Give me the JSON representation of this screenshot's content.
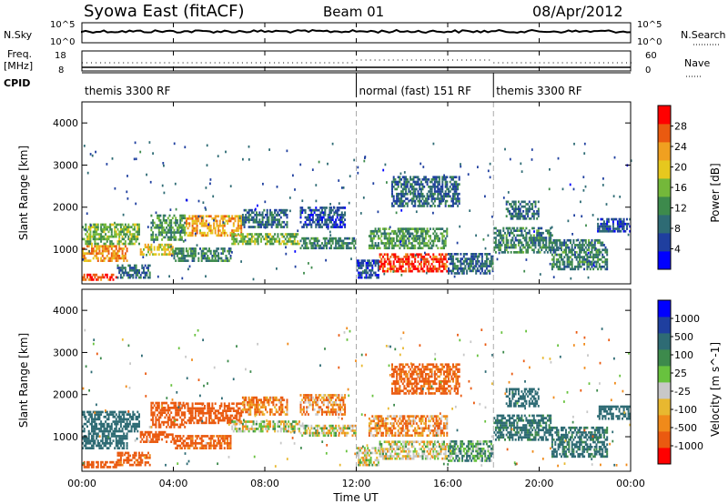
{
  "header": {
    "station": "Syowa East (fitACF)",
    "beam": "Beam 01",
    "date": "08/Apr/2012"
  },
  "top_panels": {
    "nsky_label": "N.Sky",
    "nsearch_label": "N.Search",
    "nsky_ticks": [
      "10^5",
      "10^0"
    ],
    "nsearch_ticks": [
      "10^5",
      "10^0"
    ],
    "freq_label": "Freq.",
    "freq_unit": "[MHz]",
    "freq_ticks": [
      "18",
      "8"
    ],
    "nave_label": "Nave",
    "nave_ticks": [
      "60",
      "0"
    ],
    "cpid_label": "CPID",
    "cpid_segments": [
      {
        "label": "themis 3300 RF",
        "start_hour": 0,
        "end_hour": 12
      },
      {
        "label": "normal (fast) 151 RF",
        "start_hour": 12,
        "end_hour": 18
      },
      {
        "label": "themis 3300 RF",
        "start_hour": 18,
        "end_hour": 24
      }
    ]
  },
  "axes": {
    "ylabel": "Slant Range [km]",
    "xlabel": "Time UT",
    "x_ticks": [
      "00:00",
      "04:00",
      "08:00",
      "12:00",
      "16:00",
      "20:00",
      "00:00"
    ],
    "y_ticks": [
      "1000",
      "2000",
      "3000",
      "4000"
    ]
  },
  "colors": {
    "power_scale": [
      "#0000ff",
      "#1f3f9f",
      "#2e6b74",
      "#3d8a4c",
      "#74b83a",
      "#e6c81e",
      "#f0a020",
      "#ea5a10",
      "#ff0000"
    ],
    "velocity_scale": [
      "#ff0000",
      "#ea5a10",
      "#f08a1a",
      "#e8b830",
      "#c8c8c8",
      "#68c23e",
      "#3d8a4c",
      "#2e6b74",
      "#1f3f9f",
      "#0000ff"
    ]
  },
  "chart_data": [
    {
      "type": "heatmap",
      "title": "Power",
      "xlabel": "Time UT",
      "ylabel": "Slant Range [km]",
      "xlim_hours": [
        0,
        24
      ],
      "ylim_km": [
        180,
        4500
      ],
      "colorbar_label": "Power [dB]",
      "colorbar_ticks": [
        "4",
        "8",
        "12",
        "16",
        "20",
        "24",
        "28"
      ],
      "regions": [
        {
          "t": [
            0.0,
            1.5
          ],
          "r": [
            250,
            400
          ],
          "v": 26
        },
        {
          "t": [
            0.0,
            2.0
          ],
          "r": [
            700,
            1050
          ],
          "v": 22
        },
        {
          "t": [
            0.0,
            2.5
          ],
          "r": [
            1100,
            1600
          ],
          "v": 14
        },
        {
          "t": [
            1.5,
            3.0
          ],
          "r": [
            300,
            600
          ],
          "v": 8
        },
        {
          "t": [
            2.5,
            4.0
          ],
          "r": [
            850,
            1100
          ],
          "v": 18
        },
        {
          "t": [
            3.0,
            4.5
          ],
          "r": [
            1200,
            1800
          ],
          "v": 12
        },
        {
          "t": [
            4.0,
            6.5
          ],
          "r": [
            700,
            1000
          ],
          "v": 10
        },
        {
          "t": [
            4.5,
            7.0
          ],
          "r": [
            1300,
            1800
          ],
          "v": 20
        },
        {
          "t": [
            6.5,
            9.5
          ],
          "r": [
            1100,
            1350
          ],
          "v": 14
        },
        {
          "t": [
            7.0,
            9.0
          ],
          "r": [
            1500,
            1900
          ],
          "v": 8
        },
        {
          "t": [
            9.5,
            12.0
          ],
          "r": [
            1000,
            1250
          ],
          "v": 10
        },
        {
          "t": [
            9.5,
            11.5
          ],
          "r": [
            1500,
            2000
          ],
          "v": 6
        },
        {
          "t": [
            12.0,
            13.0
          ],
          "r": [
            300,
            700
          ],
          "v": 6
        },
        {
          "t": [
            13.0,
            16.0
          ],
          "r": [
            450,
            900
          ],
          "v": 26
        },
        {
          "t": [
            12.5,
            16.0
          ],
          "r": [
            1000,
            1500
          ],
          "v": 12
        },
        {
          "t": [
            13.5,
            16.5
          ],
          "r": [
            2000,
            2700
          ],
          "v": 8
        },
        {
          "t": [
            16.0,
            18.0
          ],
          "r": [
            400,
            900
          ],
          "v": 8
        },
        {
          "t": [
            18.0,
            20.5
          ],
          "r": [
            900,
            1500
          ],
          "v": 10
        },
        {
          "t": [
            18.5,
            20.0
          ],
          "r": [
            1700,
            2100
          ],
          "v": 8
        },
        {
          "t": [
            20.5,
            23.0
          ],
          "r": [
            500,
            1200
          ],
          "v": 10
        },
        {
          "t": [
            22.5,
            24.0
          ],
          "r": [
            1400,
            1700
          ],
          "v": 6
        }
      ]
    },
    {
      "type": "heatmap",
      "title": "Velocity",
      "xlabel": "Time UT",
      "ylabel": "Slant Range [km]",
      "xlim_hours": [
        0,
        24
      ],
      "ylim_km": [
        180,
        4500
      ],
      "colorbar_label": "Velocity [m s^-1]",
      "colorbar_ticks": [
        "1000",
        "500",
        "100",
        "25",
        "-25",
        "-100",
        "-500",
        "-1000"
      ],
      "regions": [
        {
          "t": [
            0.0,
            1.5
          ],
          "r": [
            250,
            400
          ],
          "v": -200
        },
        {
          "t": [
            0.0,
            2.0
          ],
          "r": [
            700,
            1050
          ],
          "v": 200
        },
        {
          "t": [
            0.0,
            2.5
          ],
          "r": [
            1100,
            1600
          ],
          "v": 300
        },
        {
          "t": [
            1.5,
            3.0
          ],
          "r": [
            300,
            600
          ],
          "v": -150
        },
        {
          "t": [
            2.5,
            4.0
          ],
          "r": [
            850,
            1100
          ],
          "v": -200
        },
        {
          "t": [
            3.0,
            4.5
          ],
          "r": [
            1200,
            1800
          ],
          "v": -300
        },
        {
          "t": [
            4.0,
            6.5
          ],
          "r": [
            700,
            1000
          ],
          "v": -150
        },
        {
          "t": [
            4.5,
            7.0
          ],
          "r": [
            1300,
            1800
          ],
          "v": -250
        },
        {
          "t": [
            6.5,
            9.5
          ],
          "r": [
            1100,
            1350
          ],
          "v": 0
        },
        {
          "t": [
            7.0,
            9.0
          ],
          "r": [
            1500,
            1900
          ],
          "v": -100
        },
        {
          "t": [
            9.5,
            12.0
          ],
          "r": [
            1000,
            1250
          ],
          "v": 0
        },
        {
          "t": [
            9.5,
            11.5
          ],
          "r": [
            1500,
            2000
          ],
          "v": -80
        },
        {
          "t": [
            12.0,
            13.0
          ],
          "r": [
            300,
            700
          ],
          "v": 0
        },
        {
          "t": [
            13.0,
            16.0
          ],
          "r": [
            450,
            900
          ],
          "v": 0
        },
        {
          "t": [
            12.5,
            16.0
          ],
          "r": [
            1000,
            1500
          ],
          "v": -80
        },
        {
          "t": [
            13.5,
            16.5
          ],
          "r": [
            2000,
            2700
          ],
          "v": -150
        },
        {
          "t": [
            16.0,
            18.0
          ],
          "r": [
            400,
            900
          ],
          "v": 80
        },
        {
          "t": [
            18.0,
            20.5
          ],
          "r": [
            900,
            1500
          ],
          "v": 150
        },
        {
          "t": [
            18.5,
            20.0
          ],
          "r": [
            1700,
            2100
          ],
          "v": 200
        },
        {
          "t": [
            20.5,
            23.0
          ],
          "r": [
            500,
            1200
          ],
          "v": 150
        },
        {
          "t": [
            22.5,
            24.0
          ],
          "r": [
            1400,
            1700
          ],
          "v": 300
        }
      ]
    }
  ]
}
